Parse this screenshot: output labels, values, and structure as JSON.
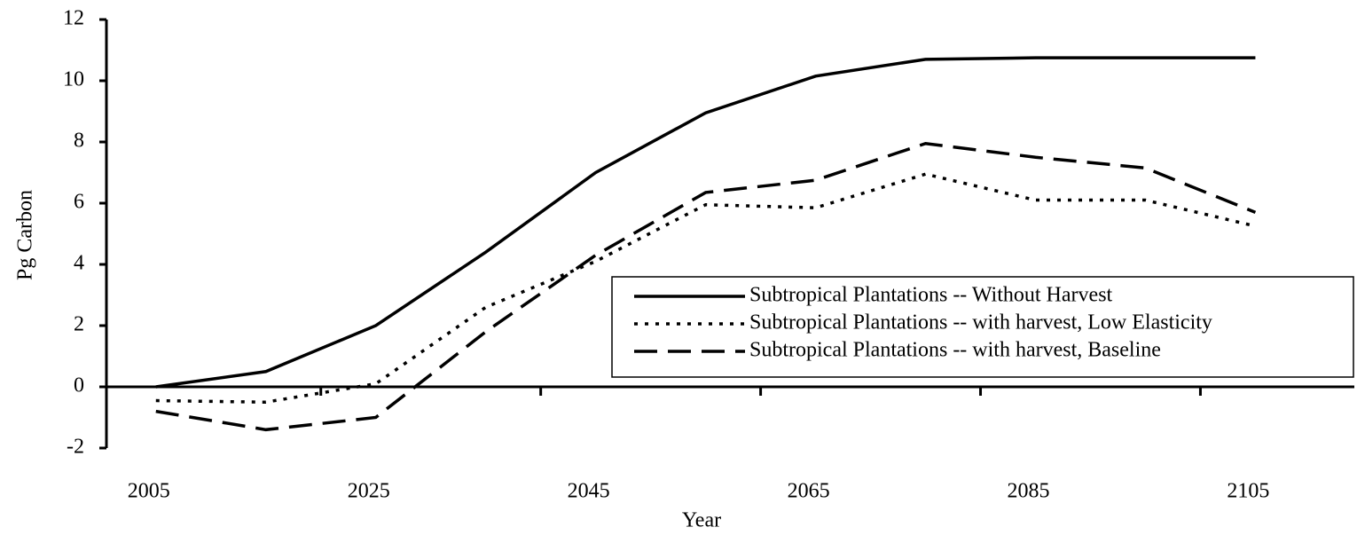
{
  "chart_data": {
    "type": "line",
    "x_label": "Year",
    "y_label": "Pg Carbon",
    "x": [
      2005,
      2015,
      2025,
      2035,
      2045,
      2055,
      2065,
      2075,
      2085,
      2095,
      2105
    ],
    "series": [
      {
        "name": "Subtropical Plantations -- Without Harvest",
        "color": "#000000",
        "style": "solid",
        "values": [
          0,
          0.5,
          2.0,
          4.4,
          7.0,
          8.95,
          10.15,
          10.7,
          10.75,
          10.75,
          10.75
        ]
      },
      {
        "name": "Subtropical Plantations -- with harvest, Low Elasticity",
        "color": "#000000",
        "style": "dotted",
        "values": [
          -0.45,
          -0.5,
          0.1,
          2.6,
          4.1,
          5.95,
          5.85,
          6.95,
          6.1,
          6.1,
          5.25
        ]
      },
      {
        "name": "Subtropical Plantations -- with harvest, Baseline",
        "color": "#000000",
        "style": "dashed",
        "values": [
          -0.8,
          -1.4,
          -1.0,
          1.8,
          4.3,
          6.35,
          6.75,
          7.95,
          7.5,
          7.15,
          5.7
        ]
      }
    ],
    "xlim": [
      2000.5,
      2114
    ],
    "xticks": [
      2005,
      2025,
      2045,
      2065,
      2085,
      2105
    ],
    "xtick_marks": [
      2020,
      2040,
      2060,
      2080,
      2100
    ],
    "ylim": [
      -2,
      12
    ],
    "yticks": [
      -2,
      0,
      2,
      4,
      6,
      8,
      10,
      12
    ],
    "grid": false,
    "legend": "right"
  }
}
